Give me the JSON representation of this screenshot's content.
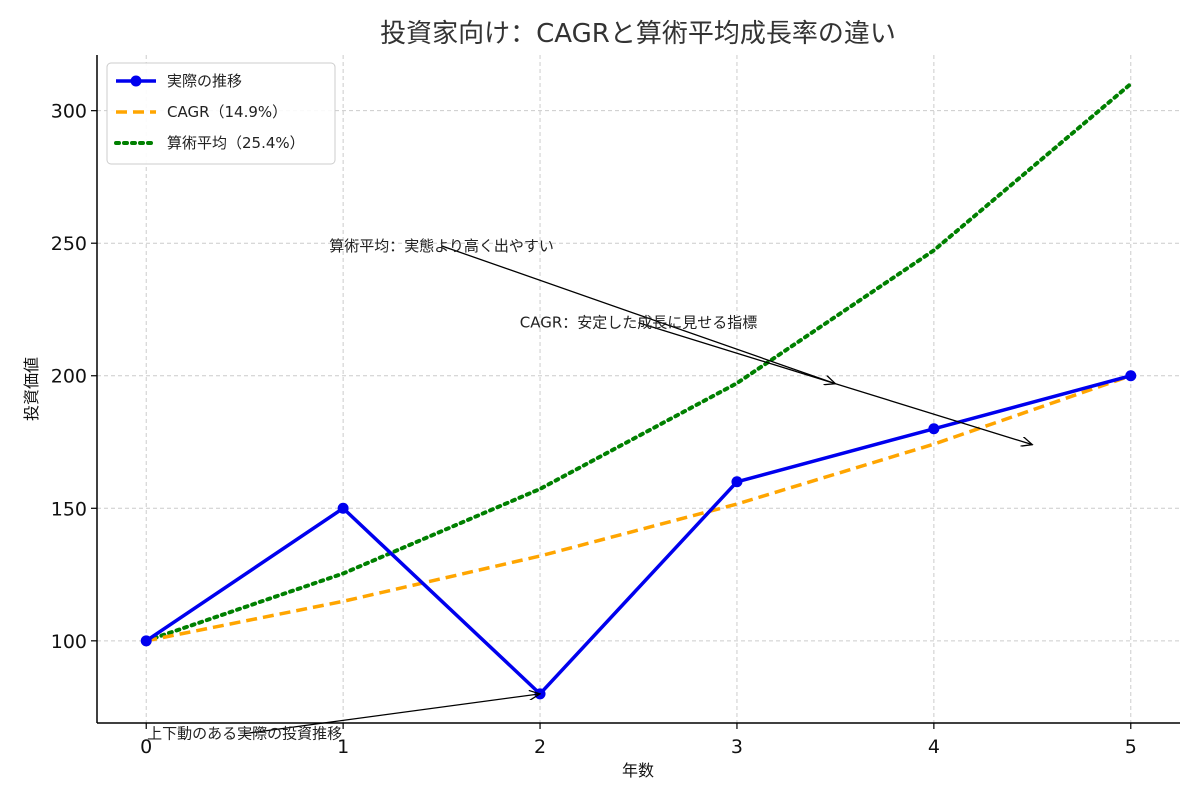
{
  "chart_data": {
    "type": "line",
    "title": "投資家向け：CAGRと算術平均成長率の違い",
    "xlabel": "年数",
    "ylabel": "投資価値",
    "xlim": [
      -0.25,
      5.25
    ],
    "ylim": [
      69,
      321
    ],
    "x": [
      0,
      1,
      2,
      3,
      4,
      5
    ],
    "xticks": [
      0,
      1,
      2,
      3,
      4,
      5
    ],
    "yticks": [
      100,
      150,
      200,
      250,
      300
    ],
    "grid": true,
    "legend_position": "top-left",
    "series": [
      {
        "name": "実際の推移",
        "color": "#0000ee",
        "style": "solid",
        "marker": "circle",
        "values": [
          100,
          150,
          80,
          160,
          180,
          200
        ]
      },
      {
        "name": "CAGR（14.9%）",
        "color": "#ffa500",
        "style": "dashed",
        "values": [
          100,
          114.9,
          132.0,
          151.6,
          174.2,
          200
        ]
      },
      {
        "name": "算術平均（25.4%）",
        "color": "#008000",
        "style": "dotted",
        "values": [
          100,
          125.4,
          157.3,
          197.2,
          247.3,
          310.1
        ]
      }
    ],
    "annotations": [
      {
        "text": "算術平均：実態より高く出やすい",
        "text_x": 1.5,
        "text_y": 249,
        "point_x": 3.5,
        "point_y": 197
      },
      {
        "text": "CAGR：安定した成長に見せる指標",
        "text_x": 2.5,
        "text_y": 220,
        "point_x": 4.5,
        "point_y": 174
      },
      {
        "text": "上下動のある実際の投資推移",
        "text_x": 0.5,
        "text_y": 65,
        "point_x": 2,
        "point_y": 80
      }
    ]
  }
}
